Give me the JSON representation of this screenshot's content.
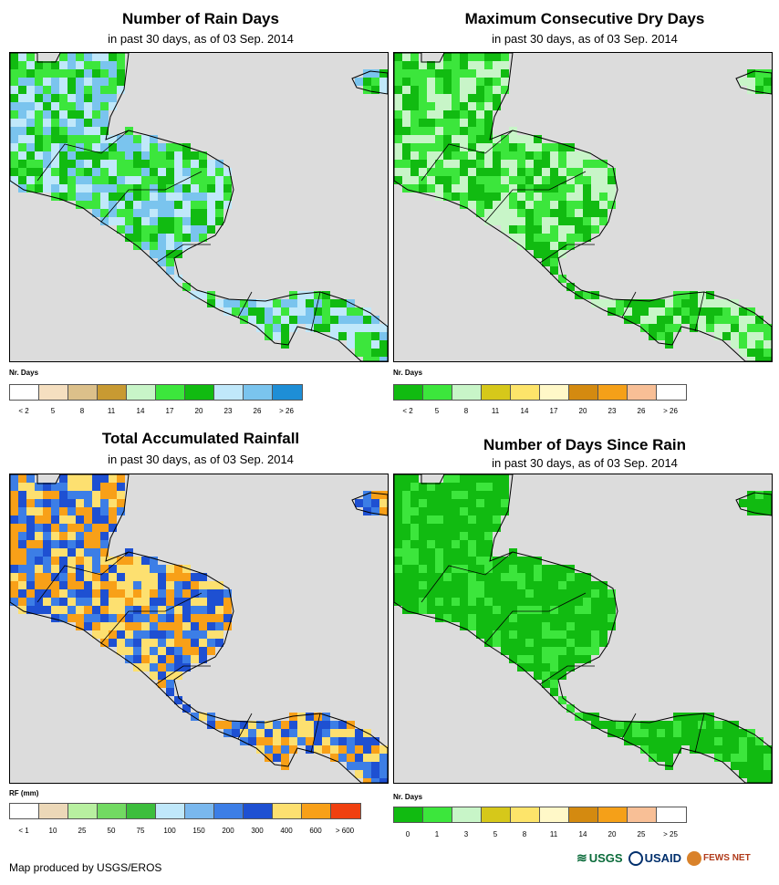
{
  "panels": [
    {
      "title": "Number of Rain Days",
      "subtitle": "in past 30 days, as of 03 Sep. 2014",
      "legend": {
        "title": "Nr. Days",
        "colors": [
          "#ffffff",
          "#f5dfc0",
          "#dcc08a",
          "#c89a32",
          "#c8f5c8",
          "#3ce63c",
          "#11bb11",
          "#c0e8fa",
          "#7ac4ee",
          "#1e8ed6"
        ],
        "ticks": [
          "< 2",
          "5",
          "8",
          "11",
          "14",
          "17",
          "20",
          "23",
          "26",
          "> 26"
        ]
      },
      "dominant_colors": [
        "#11bb11",
        "#3ce63c",
        "#c0e8fa",
        "#7ac4ee"
      ]
    },
    {
      "title": "Maximum Consecutive Dry Days",
      "subtitle": "in past 30 days, as of 03 Sep. 2014",
      "legend": {
        "title": "Nr. Days",
        "colors": [
          "#11bb11",
          "#3ce63c",
          "#c8f5c8",
          "#d6c81a",
          "#fde46a",
          "#fff8c8",
          "#d48a10",
          "#f5a018",
          "#f8bf96",
          "#ffffff"
        ],
        "ticks": [
          "< 2",
          "5",
          "8",
          "11",
          "14",
          "17",
          "20",
          "23",
          "26",
          "> 26"
        ]
      },
      "dominant_colors": [
        "#11bb11",
        "#3ce63c",
        "#c8f5c8"
      ]
    },
    {
      "title": "Total Accumulated Rainfall",
      "subtitle": "in past 30 days, as of 03 Sep. 2014",
      "legend": {
        "title": "RF (mm)",
        "colors": [
          "#ffffff",
          "#ecd8b8",
          "#b8f0a0",
          "#72da62",
          "#3cbe3c",
          "#c0e8fa",
          "#7ab8ee",
          "#3c7ee6",
          "#1e50d2",
          "#fde070",
          "#f8a018",
          "#f04010"
        ],
        "ticks": [
          "< 1",
          "10",
          "25",
          "50",
          "75",
          "100",
          "150",
          "200",
          "300",
          "400",
          "600",
          "> 600"
        ]
      },
      "dominant_colors": [
        "#3c7ee6",
        "#1e50d2",
        "#f8a018",
        "#fde070"
      ]
    },
    {
      "title": "Number of Days Since Rain",
      "subtitle": "in past 30 days, as of 03 Sep. 2014",
      "legend": {
        "title": "Nr. Days",
        "colors": [
          "#11bb11",
          "#3ce63c",
          "#c8f5c8",
          "#d6c81a",
          "#fde46a",
          "#fff8c8",
          "#d48a10",
          "#f5a018",
          "#f8bf96",
          "#ffffff"
        ],
        "ticks": [
          "0",
          "1",
          "3",
          "5",
          "8",
          "11",
          "14",
          "20",
          "25",
          "> 25"
        ]
      },
      "dominant_colors": [
        "#11bb11",
        "#3ce63c"
      ]
    }
  ],
  "credit": "Map produced by USGS/EROS",
  "logos": {
    "usgs": "USGS",
    "usaid": "USAID",
    "fews": "FEWS NET"
  }
}
